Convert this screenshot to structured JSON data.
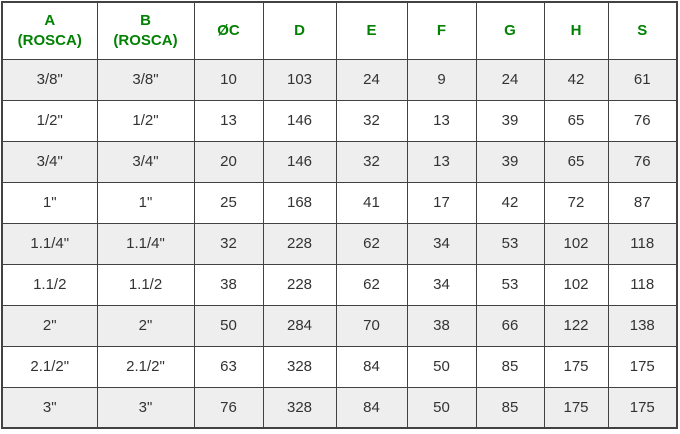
{
  "chart_data": {
    "type": "table",
    "title": "",
    "columns": [
      "A (ROSCA)",
      "B (ROSCA)",
      "ØC",
      "D",
      "E",
      "F",
      "G",
      "H",
      "S"
    ],
    "rows": [
      [
        "3/8\"",
        "3/8\"",
        "10",
        "103",
        "24",
        "9",
        "24",
        "42",
        "61"
      ],
      [
        "1/2\"",
        "1/2\"",
        "13",
        "146",
        "32",
        "13",
        "39",
        "65",
        "76"
      ],
      [
        "3/4\"",
        "3/4\"",
        "20",
        "146",
        "32",
        "13",
        "39",
        "65",
        "76"
      ],
      [
        "1\"",
        "1\"",
        "25",
        "168",
        "41",
        "17",
        "42",
        "72",
        "87"
      ],
      [
        "1.1/4\"",
        "1.1/4\"",
        "32",
        "228",
        "62",
        "34",
        "53",
        "102",
        "118"
      ],
      [
        "1.1/2",
        "1.1/2",
        "38",
        "228",
        "62",
        "34",
        "53",
        "102",
        "118"
      ],
      [
        "2\"",
        "2\"",
        "50",
        "284",
        "70",
        "38",
        "66",
        "122",
        "138"
      ],
      [
        "2.1/2\"",
        "2.1/2\"",
        "63",
        "328",
        "84",
        "50",
        "85",
        "175",
        "175"
      ],
      [
        "3\"",
        "3\"",
        "76",
        "328",
        "84",
        "50",
        "85",
        "175",
        "175"
      ]
    ],
    "header_display": [
      "A\n(ROSCA)",
      "B\n(ROSCA)",
      "ØC",
      "D",
      "E",
      "F",
      "G",
      "H",
      "S"
    ],
    "layout_hints": {
      "alternating_rows_start": "gray",
      "grid": "on",
      "legend": "none"
    }
  },
  "style": {
    "header_text_color": "#028102",
    "border_color": "#424242",
    "alt_row_bg": "#eeeeee",
    "row_bg": "#ffffff",
    "cell_text_color": "#333333",
    "page_bg": "#ffffff"
  }
}
